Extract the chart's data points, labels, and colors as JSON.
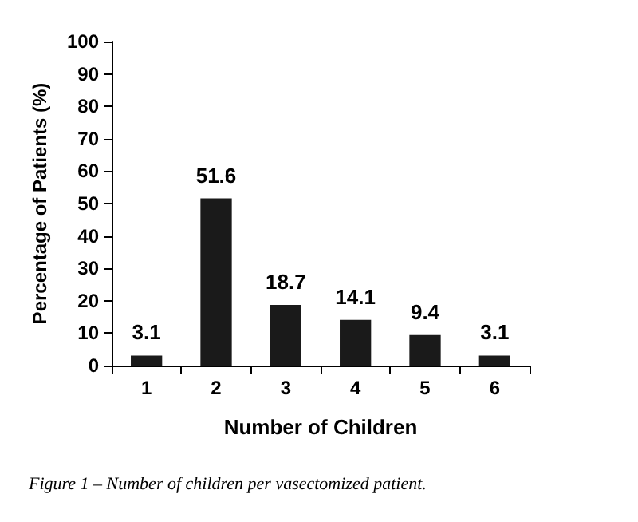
{
  "chart_data": {
    "type": "bar",
    "categories": [
      "1",
      "2",
      "3",
      "4",
      "5",
      "6"
    ],
    "values": [
      3.1,
      51.6,
      18.7,
      14.1,
      9.4,
      3.1
    ],
    "color": "#1a1a1a",
    "xlabel": "Number of Children",
    "ylabel": "Percentage of Patients (%)",
    "ylim": [
      0,
      100
    ],
    "yticks": [
      0,
      10,
      20,
      30,
      40,
      50,
      60,
      70,
      80,
      90,
      100
    ],
    "data_labels": true,
    "grid": false,
    "annotations": [
      "Figure 1 – Number of children per vasectomized patient."
    ]
  }
}
